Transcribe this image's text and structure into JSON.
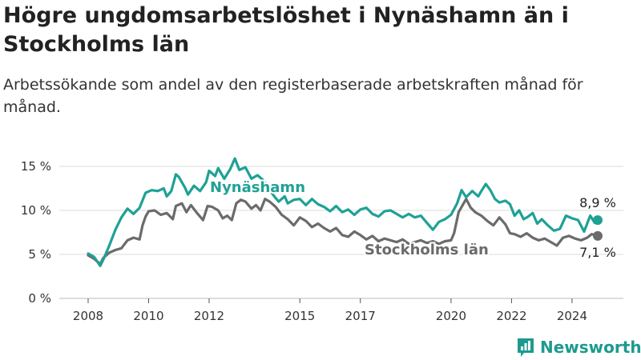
{
  "header": {
    "title": "Högre ungdomsarbetslöshet i Nynäshamn än i Stockholms län",
    "subtitle": "Arbetssökande som andel av den registerbaserade arbetskraften månad för månad."
  },
  "brand": {
    "name": "Newsworthy",
    "icon": "newsworthy-logo-icon"
  },
  "colors": {
    "nynashamn": "#1fa195",
    "stockholm": "#6b6b6b",
    "grid": "#dddddd",
    "axis": "#555555"
  },
  "chart_data": {
    "type": "line",
    "title": "Högre ungdomsarbetslöshet i Nynäshamn än i Stockholms län",
    "subtitle": "Arbetssökande som andel av den registerbaserade arbetskraften månad för månad.",
    "xlabel": "",
    "ylabel": "",
    "x_ticks": [
      "2008",
      "2010",
      "2012",
      "2015",
      "2017",
      "2020",
      "2022",
      "2024"
    ],
    "y_ticks": [
      "0 %",
      "5 %",
      "10 %",
      "15 %"
    ],
    "ylim": [
      0,
      16
    ],
    "grid": true,
    "series": [
      {
        "name": "Nynäshamn",
        "color": "#1fa195",
        "end_label": "8,9 %",
        "points": [
          [
            2008.0,
            5.1
          ],
          [
            2008.2,
            4.7
          ],
          [
            2008.4,
            3.7
          ],
          [
            2008.5,
            4.4
          ],
          [
            2008.7,
            6.0
          ],
          [
            2008.9,
            7.8
          ],
          [
            2009.1,
            9.2
          ],
          [
            2009.3,
            10.2
          ],
          [
            2009.5,
            9.6
          ],
          [
            2009.7,
            10.3
          ],
          [
            2009.9,
            12.0
          ],
          [
            2010.1,
            12.3
          ],
          [
            2010.3,
            12.2
          ],
          [
            2010.5,
            12.5
          ],
          [
            2010.6,
            11.6
          ],
          [
            2010.75,
            12.2
          ],
          [
            2010.9,
            14.1
          ],
          [
            2011.0,
            13.8
          ],
          [
            2011.2,
            12.6
          ],
          [
            2011.3,
            11.8
          ],
          [
            2011.5,
            12.8
          ],
          [
            2011.7,
            12.2
          ],
          [
            2011.9,
            13.2
          ],
          [
            2012.0,
            14.5
          ],
          [
            2012.2,
            13.9
          ],
          [
            2012.3,
            14.8
          ],
          [
            2012.5,
            13.6
          ],
          [
            2012.7,
            14.7
          ],
          [
            2012.85,
            15.9
          ],
          [
            2013.0,
            14.6
          ],
          [
            2013.2,
            14.9
          ],
          [
            2013.4,
            13.6
          ],
          [
            2013.6,
            14.0
          ],
          [
            2013.8,
            13.4
          ],
          [
            2014.0,
            12.3
          ],
          [
            2014.2,
            11.4
          ],
          [
            2014.3,
            11.0
          ],
          [
            2014.5,
            11.6
          ],
          [
            2014.6,
            10.8
          ],
          [
            2014.8,
            11.2
          ],
          [
            2015.0,
            11.3
          ],
          [
            2015.2,
            10.6
          ],
          [
            2015.4,
            11.3
          ],
          [
            2015.6,
            10.7
          ],
          [
            2015.8,
            10.4
          ],
          [
            2016.0,
            9.9
          ],
          [
            2016.2,
            10.5
          ],
          [
            2016.4,
            9.8
          ],
          [
            2016.6,
            10.1
          ],
          [
            2016.8,
            9.5
          ],
          [
            2017.0,
            10.1
          ],
          [
            2017.2,
            10.3
          ],
          [
            2017.4,
            9.6
          ],
          [
            2017.6,
            9.3
          ],
          [
            2017.8,
            9.9
          ],
          [
            2018.0,
            10.0
          ],
          [
            2018.2,
            9.6
          ],
          [
            2018.4,
            9.2
          ],
          [
            2018.6,
            9.6
          ],
          [
            2018.8,
            9.2
          ],
          [
            2019.0,
            9.4
          ],
          [
            2019.2,
            8.6
          ],
          [
            2019.4,
            7.8
          ],
          [
            2019.6,
            8.7
          ],
          [
            2019.8,
            9.0
          ],
          [
            2020.0,
            9.5
          ],
          [
            2020.2,
            10.8
          ],
          [
            2020.35,
            12.3
          ],
          [
            2020.5,
            11.5
          ],
          [
            2020.7,
            12.2
          ],
          [
            2020.9,
            11.6
          ],
          [
            2021.0,
            12.2
          ],
          [
            2021.15,
            13.0
          ],
          [
            2021.3,
            12.3
          ],
          [
            2021.45,
            11.3
          ],
          [
            2021.6,
            10.9
          ],
          [
            2021.8,
            11.1
          ],
          [
            2021.95,
            10.7
          ],
          [
            2022.1,
            9.4
          ],
          [
            2022.25,
            10.0
          ],
          [
            2022.4,
            9.0
          ],
          [
            2022.55,
            9.3
          ],
          [
            2022.7,
            9.7
          ],
          [
            2022.85,
            8.5
          ],
          [
            2023.0,
            9.0
          ],
          [
            2023.2,
            8.3
          ],
          [
            2023.4,
            7.7
          ],
          [
            2023.6,
            7.9
          ],
          [
            2023.8,
            9.4
          ],
          [
            2024.0,
            9.1
          ],
          [
            2024.2,
            8.9
          ],
          [
            2024.4,
            7.6
          ],
          [
            2024.6,
            9.4
          ],
          [
            2024.75,
            8.6
          ],
          [
            2024.85,
            8.9
          ]
        ]
      },
      {
        "name": "Stockholms län",
        "color": "#6b6b6b",
        "end_label": "7,1 %",
        "points": [
          [
            2008.0,
            4.9
          ],
          [
            2008.2,
            4.5
          ],
          [
            2008.4,
            3.9
          ],
          [
            2008.5,
            4.6
          ],
          [
            2008.7,
            5.2
          ],
          [
            2008.9,
            5.5
          ],
          [
            2009.1,
            5.7
          ],
          [
            2009.3,
            6.6
          ],
          [
            2009.5,
            6.9
          ],
          [
            2009.7,
            6.7
          ],
          [
            2009.8,
            8.3
          ],
          [
            2009.9,
            9.3
          ],
          [
            2010.0,
            9.9
          ],
          [
            2010.2,
            10.0
          ],
          [
            2010.4,
            9.5
          ],
          [
            2010.6,
            9.7
          ],
          [
            2010.8,
            9.0
          ],
          [
            2010.9,
            10.5
          ],
          [
            2011.1,
            10.8
          ],
          [
            2011.25,
            9.8
          ],
          [
            2011.4,
            10.6
          ],
          [
            2011.6,
            9.7
          ],
          [
            2011.8,
            8.9
          ],
          [
            2011.95,
            10.5
          ],
          [
            2012.1,
            10.4
          ],
          [
            2012.3,
            10.0
          ],
          [
            2012.45,
            9.1
          ],
          [
            2012.6,
            9.4
          ],
          [
            2012.75,
            8.9
          ],
          [
            2012.9,
            10.8
          ],
          [
            2013.05,
            11.2
          ],
          [
            2013.2,
            11.0
          ],
          [
            2013.4,
            10.2
          ],
          [
            2013.55,
            10.6
          ],
          [
            2013.7,
            10.0
          ],
          [
            2013.85,
            11.3
          ],
          [
            2014.0,
            11.0
          ],
          [
            2014.2,
            10.4
          ],
          [
            2014.4,
            9.5
          ],
          [
            2014.6,
            9.0
          ],
          [
            2014.8,
            8.3
          ],
          [
            2015.0,
            9.2
          ],
          [
            2015.2,
            8.8
          ],
          [
            2015.4,
            8.1
          ],
          [
            2015.6,
            8.5
          ],
          [
            2015.8,
            8.0
          ],
          [
            2016.0,
            7.6
          ],
          [
            2016.2,
            8.0
          ],
          [
            2016.4,
            7.2
          ],
          [
            2016.6,
            7.0
          ],
          [
            2016.8,
            7.6
          ],
          [
            2017.0,
            7.2
          ],
          [
            2017.2,
            6.7
          ],
          [
            2017.4,
            7.1
          ],
          [
            2017.6,
            6.5
          ],
          [
            2017.8,
            6.8
          ],
          [
            2018.0,
            6.6
          ],
          [
            2018.2,
            6.4
          ],
          [
            2018.4,
            6.7
          ],
          [
            2018.6,
            6.2
          ],
          [
            2018.8,
            6.4
          ],
          [
            2019.0,
            6.6
          ],
          [
            2019.2,
            6.3
          ],
          [
            2019.4,
            6.5
          ],
          [
            2019.6,
            6.2
          ],
          [
            2019.8,
            6.5
          ],
          [
            2020.0,
            6.6
          ],
          [
            2020.1,
            7.4
          ],
          [
            2020.25,
            9.8
          ],
          [
            2020.35,
            10.4
          ],
          [
            2020.5,
            11.3
          ],
          [
            2020.65,
            10.3
          ],
          [
            2020.8,
            9.8
          ],
          [
            2021.0,
            9.4
          ],
          [
            2021.2,
            8.8
          ],
          [
            2021.4,
            8.3
          ],
          [
            2021.6,
            9.2
          ],
          [
            2021.8,
            8.4
          ],
          [
            2021.95,
            7.4
          ],
          [
            2022.1,
            7.3
          ],
          [
            2022.3,
            7.0
          ],
          [
            2022.5,
            7.4
          ],
          [
            2022.7,
            6.9
          ],
          [
            2022.9,
            6.6
          ],
          [
            2023.1,
            6.8
          ],
          [
            2023.3,
            6.4
          ],
          [
            2023.5,
            6.0
          ],
          [
            2023.7,
            6.9
          ],
          [
            2023.9,
            7.1
          ],
          [
            2024.1,
            6.8
          ],
          [
            2024.3,
            6.6
          ],
          [
            2024.5,
            6.9
          ],
          [
            2024.65,
            7.3
          ],
          [
            2024.85,
            7.1
          ]
        ]
      }
    ]
  }
}
